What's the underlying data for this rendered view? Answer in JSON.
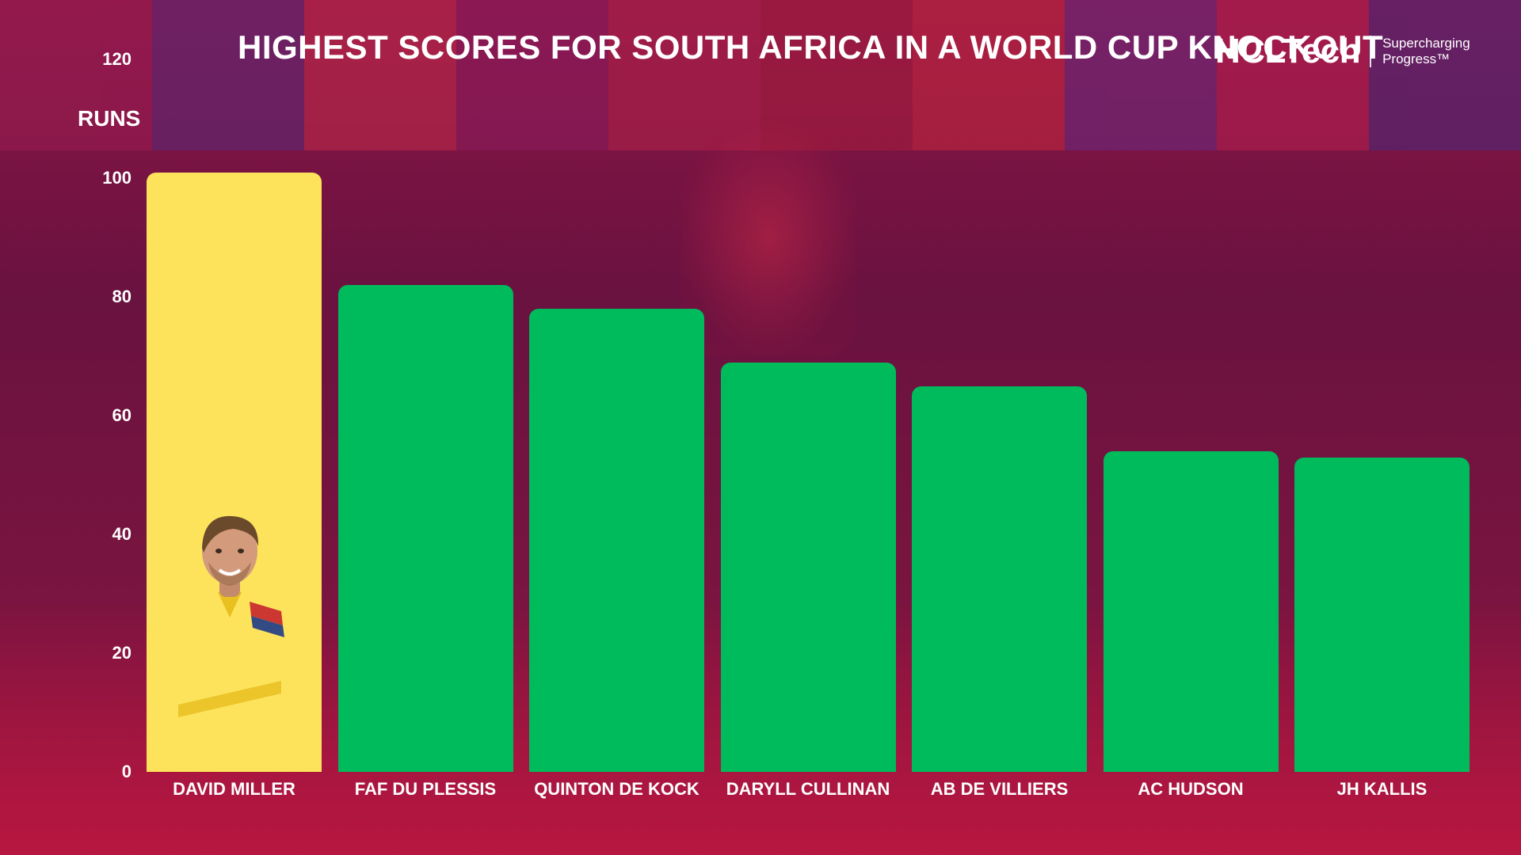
{
  "title": "HIGHEST SCORES FOR SOUTH AFRICA IN A WORLD CUP KNOCKOUT",
  "brand": {
    "name": "HCLTech",
    "tagline_line1": "Supercharging",
    "tagline_line2": "Progress™"
  },
  "colors": {
    "highlight_bar": "#fde35c",
    "bar": "#00bb5c",
    "background": "#7a1440"
  },
  "chart_data": {
    "type": "bar",
    "title": "HIGHEST SCORES FOR SOUTH AFRICA IN A WORLD CUP KNOCKOUT",
    "ylabel": "RUNS",
    "xlabel": "",
    "ylim": [
      0,
      120
    ],
    "yticks": [
      0,
      20,
      40,
      60,
      80,
      100,
      120
    ],
    "categories": [
      "DAVID MILLER",
      "FAF DU PLESSIS",
      "QUINTON DE KOCK",
      "DARYLL CULLINAN",
      "AB DE VILLIERS",
      "AC HUDSON",
      "JH KALLIS"
    ],
    "values": [
      101,
      82,
      78,
      69,
      65,
      54,
      53
    ],
    "highlight_index": 0,
    "grid": false
  }
}
